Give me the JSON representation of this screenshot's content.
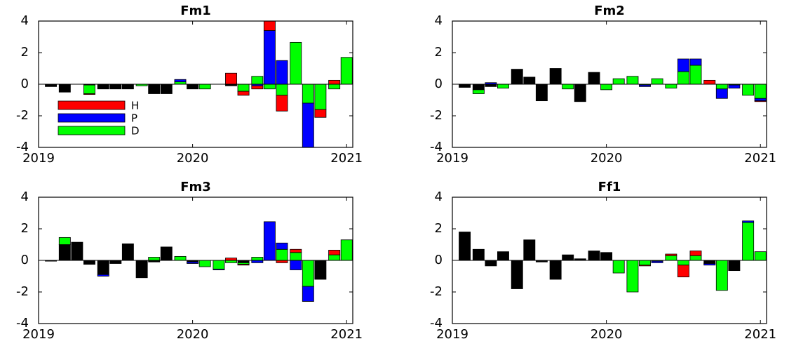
{
  "chart_data": [
    {
      "type": "bar",
      "stacked": true,
      "title": "Fm1",
      "x": [
        2019.08,
        2019.17,
        2019.25,
        2019.33,
        2019.42,
        2019.5,
        2019.58,
        2019.67,
        2019.75,
        2019.83,
        2019.92,
        2020.0,
        2020.08,
        2020.17,
        2020.25,
        2020.33,
        2020.42,
        2020.5,
        2020.58,
        2020.67,
        2020.75,
        2020.83,
        2020.92,
        2021.0
      ],
      "xlim": [
        2019,
        2021.04
      ],
      "xticks": [
        2019,
        2020,
        2021
      ],
      "ylim": [
        -4,
        4
      ],
      "yticks": [
        -4,
        -2,
        0,
        2,
        4
      ],
      "legend": "lower left",
      "series": [
        {
          "color": "#000000",
          "values": [
            -0.15,
            -0.5,
            0,
            -0.05,
            -0.3,
            -0.3,
            -0.3,
            0,
            -0.6,
            -0.6,
            0,
            -0.3,
            0,
            0,
            -0.1,
            0,
            0,
            0,
            0,
            0,
            0,
            0,
            0,
            0
          ]
        },
        {
          "name": "D",
          "color": "#00ff00",
          "values": [
            0,
            0,
            0,
            -0.55,
            0,
            0,
            0,
            -0.1,
            0,
            0,
            0.15,
            0,
            -0.3,
            0,
            0,
            -0.45,
            0.5,
            -0.3,
            -0.7,
            2.65,
            -1.2,
            -1.6,
            -0.3,
            1.7
          ]
        },
        {
          "name": "P",
          "color": "#0000ff",
          "values": [
            0,
            0,
            0,
            0,
            0,
            0,
            0,
            0,
            0,
            0,
            0.15,
            0,
            0,
            0,
            0,
            0,
            -0.1,
            3.4,
            1.5,
            0,
            -2.8,
            0,
            0,
            0
          ]
        },
        {
          "name": "H",
          "color": "#ff0000",
          "values": [
            0,
            0,
            0,
            -0.05,
            0,
            0,
            0,
            0,
            0,
            0,
            0,
            0,
            0,
            0,
            0.7,
            -0.25,
            -0.2,
            0.6,
            -1.0,
            0,
            0,
            -0.5,
            0.25,
            0
          ]
        }
      ]
    },
    {
      "type": "bar",
      "stacked": true,
      "title": "Fm2",
      "x": [
        2019.08,
        2019.17,
        2019.25,
        2019.33,
        2019.42,
        2019.5,
        2019.58,
        2019.67,
        2019.75,
        2019.83,
        2019.92,
        2020.0,
        2020.08,
        2020.17,
        2020.25,
        2020.33,
        2020.42,
        2020.5,
        2020.58,
        2020.67,
        2020.75,
        2020.83,
        2020.92,
        2021.0
      ],
      "xlim": [
        2019,
        2021.04
      ],
      "xticks": [
        2019,
        2020,
        2021
      ],
      "ylim": [
        -4,
        4
      ],
      "yticks": [
        -4,
        -2,
        0,
        2,
        4
      ],
      "series": [
        {
          "color": "#000000",
          "values": [
            -0.2,
            -0.35,
            -0.15,
            0,
            0.95,
            0.45,
            -1.05,
            1.0,
            0,
            -1.1,
            0.75,
            0,
            0,
            0,
            0,
            0,
            0,
            0,
            0,
            0,
            0,
            0,
            0,
            0
          ]
        },
        {
          "color": "#00ff00",
          "values": [
            0,
            -0.25,
            0,
            -0.25,
            0,
            0,
            0,
            0,
            -0.3,
            0,
            0,
            -0.35,
            0.35,
            0.5,
            -0.05,
            0.35,
            -0.25,
            0.8,
            1.2,
            0,
            -0.3,
            -0.05,
            -0.7,
            -0.9
          ]
        },
        {
          "color": "#0000ff",
          "values": [
            0,
            0,
            0.1,
            0,
            0,
            0,
            0,
            0,
            0,
            0,
            0,
            0,
            0,
            0,
            -0.1,
            0,
            0,
            0.8,
            0.4,
            0,
            -0.6,
            -0.2,
            0,
            -0.15
          ]
        },
        {
          "color": "#ff0000",
          "values": [
            0,
            0,
            0,
            0,
            0,
            0,
            0,
            0,
            0,
            0,
            0,
            0,
            0,
            0,
            0,
            0,
            0,
            0,
            0,
            0.25,
            0,
            0,
            0,
            -0.05
          ]
        }
      ]
    },
    {
      "type": "bar",
      "stacked": true,
      "title": "Fm3",
      "x": [
        2019.08,
        2019.17,
        2019.25,
        2019.33,
        2019.42,
        2019.5,
        2019.58,
        2019.67,
        2019.75,
        2019.83,
        2019.92,
        2020.0,
        2020.08,
        2020.17,
        2020.25,
        2020.33,
        2020.42,
        2020.5,
        2020.58,
        2020.67,
        2020.75,
        2020.83,
        2020.92,
        2021.0
      ],
      "xlim": [
        2019,
        2021.04
      ],
      "xticks": [
        2019,
        2020,
        2021
      ],
      "ylim": [
        -4,
        4
      ],
      "yticks": [
        -4,
        -2,
        0,
        2,
        4
      ],
      "series": [
        {
          "color": "#000000",
          "values": [
            -0.05,
            1.0,
            1.15,
            -0.25,
            -0.9,
            -0.2,
            1.05,
            -1.1,
            -0.1,
            0.85,
            0,
            -0.1,
            0,
            0,
            0,
            -0.15,
            0,
            0,
            0,
            0,
            0,
            -1.2,
            0,
            0
          ]
        },
        {
          "color": "#00ff00",
          "values": [
            0,
            0.45,
            0,
            0,
            0,
            0,
            0,
            0,
            0.2,
            0,
            0.25,
            0,
            -0.4,
            -0.55,
            -0.15,
            -0.1,
            0.2,
            0,
            0.7,
            0.5,
            -1.65,
            0,
            0.35,
            1.3
          ]
        },
        {
          "color": "#0000ff",
          "values": [
            0,
            0,
            0,
            0,
            -0.1,
            0,
            0,
            0,
            0,
            0,
            0,
            -0.1,
            0,
            -0.05,
            0,
            0,
            -0.15,
            2.45,
            0.4,
            -0.6,
            -0.95,
            0,
            0,
            0
          ]
        },
        {
          "color": "#ff0000",
          "values": [
            0,
            0,
            0,
            0,
            0,
            0,
            0,
            0,
            0,
            0,
            0,
            0,
            0,
            0,
            0.15,
            -0.05,
            0,
            0,
            -0.15,
            0.2,
            0,
            0,
            0.3,
            0
          ]
        }
      ]
    },
    {
      "type": "bar",
      "stacked": true,
      "title": "Ff1",
      "x": [
        2019.08,
        2019.17,
        2019.25,
        2019.33,
        2019.42,
        2019.5,
        2019.58,
        2019.67,
        2019.75,
        2019.83,
        2019.92,
        2020.0,
        2020.08,
        2020.17,
        2020.25,
        2020.33,
        2020.42,
        2020.5,
        2020.58,
        2020.67,
        2020.75,
        2020.83,
        2020.92,
        2021.0
      ],
      "xlim": [
        2019,
        2021.04
      ],
      "xticks": [
        2019,
        2020,
        2021
      ],
      "ylim": [
        -4,
        4
      ],
      "yticks": [
        -4,
        -2,
        0,
        2,
        4
      ],
      "series": [
        {
          "color": "#000000",
          "values": [
            1.8,
            0.7,
            -0.35,
            0.55,
            -1.8,
            1.3,
            -0.1,
            -1.2,
            0.35,
            0.1,
            0.6,
            0.5,
            0,
            0,
            0,
            0,
            0,
            0,
            0,
            -0.2,
            0,
            -0.65,
            0,
            0
          ]
        },
        {
          "color": "#00ff00",
          "values": [
            0,
            0,
            0,
            0,
            0,
            0,
            0,
            0,
            0,
            0,
            0,
            0,
            -0.8,
            -2.0,
            -0.3,
            -0.05,
            0.3,
            -0.3,
            0.3,
            0,
            -1.9,
            0,
            2.4,
            0.55
          ]
        },
        {
          "color": "#0000ff",
          "values": [
            0,
            0,
            0,
            0,
            0,
            0,
            0,
            0,
            0,
            0,
            0,
            0,
            0,
            0,
            0,
            -0.1,
            0,
            0,
            0,
            -0.1,
            0,
            0,
            0.1,
            0
          ]
        },
        {
          "color": "#ff0000",
          "values": [
            0,
            0,
            0,
            0,
            0,
            0,
            0,
            0,
            0,
            0,
            0,
            0,
            0,
            0,
            -0.05,
            0,
            0.1,
            -0.75,
            0.3,
            0,
            0,
            0,
            0,
            0
          ]
        }
      ]
    }
  ]
}
